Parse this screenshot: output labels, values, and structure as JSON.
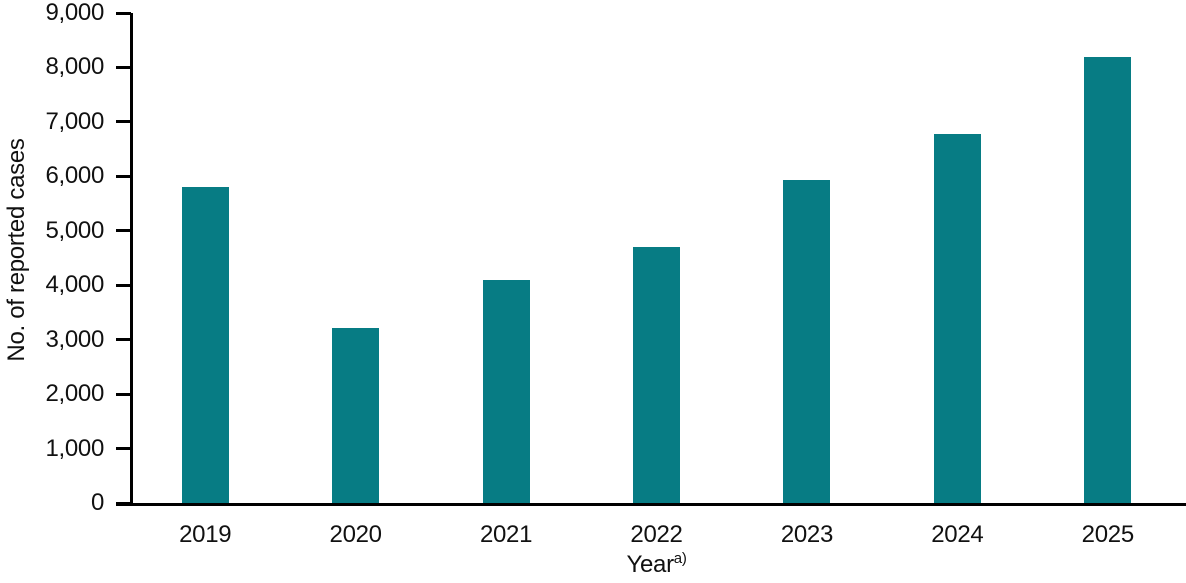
{
  "chart_data": {
    "type": "bar",
    "categories": [
      "2019",
      "2020",
      "2021",
      "2022",
      "2023",
      "2024",
      "2025"
    ],
    "values": [
      5800,
      3220,
      4100,
      4700,
      5930,
      6780,
      8200
    ],
    "title": "",
    "xlabel": "Year",
    "xlabel_superscript": "a)",
    "ylabel": "No. of reported cases",
    "ylim": [
      0,
      9000
    ],
    "ytick_step": 1000,
    "ytick_labels": [
      "0",
      "1,000",
      "2,000",
      "3,000",
      "4,000",
      "5,000",
      "6,000",
      "7,000",
      "8,000",
      "9,000"
    ],
    "grid": false,
    "legend": "none",
    "colors": {
      "bar": "#077c84",
      "axis": "#000000",
      "text": "#111111",
      "background": "#ffffff"
    }
  }
}
